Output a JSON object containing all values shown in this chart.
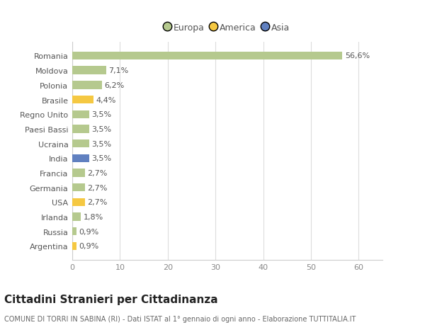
{
  "categories": [
    "Argentina",
    "Russia",
    "Irlanda",
    "USA",
    "Germania",
    "Francia",
    "India",
    "Ucraina",
    "Paesi Bassi",
    "Regno Unito",
    "Brasile",
    "Polonia",
    "Moldova",
    "Romania"
  ],
  "values": [
    0.9,
    0.9,
    1.8,
    2.7,
    2.7,
    2.7,
    3.5,
    3.5,
    3.5,
    3.5,
    4.4,
    6.2,
    7.1,
    56.6
  ],
  "labels": [
    "0,9%",
    "0,9%",
    "1,8%",
    "2,7%",
    "2,7%",
    "2,7%",
    "3,5%",
    "3,5%",
    "3,5%",
    "3,5%",
    "4,4%",
    "6,2%",
    "7,1%",
    "56,6%"
  ],
  "colors": [
    "#f5c842",
    "#b5c98e",
    "#b5c98e",
    "#f5c842",
    "#b5c98e",
    "#b5c98e",
    "#6080c0",
    "#b5c98e",
    "#b5c98e",
    "#b5c98e",
    "#f5c842",
    "#b5c98e",
    "#b5c98e",
    "#b5c98e"
  ],
  "legend_labels": [
    "Europa",
    "America",
    "Asia"
  ],
  "legend_colors": [
    "#b5c98e",
    "#f5c842",
    "#6080c0"
  ],
  "title": "Cittadini Stranieri per Cittadinanza",
  "subtitle": "COMUNE DI TORRI IN SABINA (RI) - Dati ISTAT al 1° gennaio di ogni anno - Elaborazione TUTTITALIA.IT",
  "xlim": [
    0,
    65
  ],
  "xticks": [
    0,
    10,
    20,
    30,
    40,
    50,
    60
  ],
  "background_color": "#ffffff",
  "bar_height": 0.55,
  "title_fontsize": 11,
  "subtitle_fontsize": 7,
  "label_fontsize": 8,
  "tick_fontsize": 8,
  "legend_fontsize": 9
}
